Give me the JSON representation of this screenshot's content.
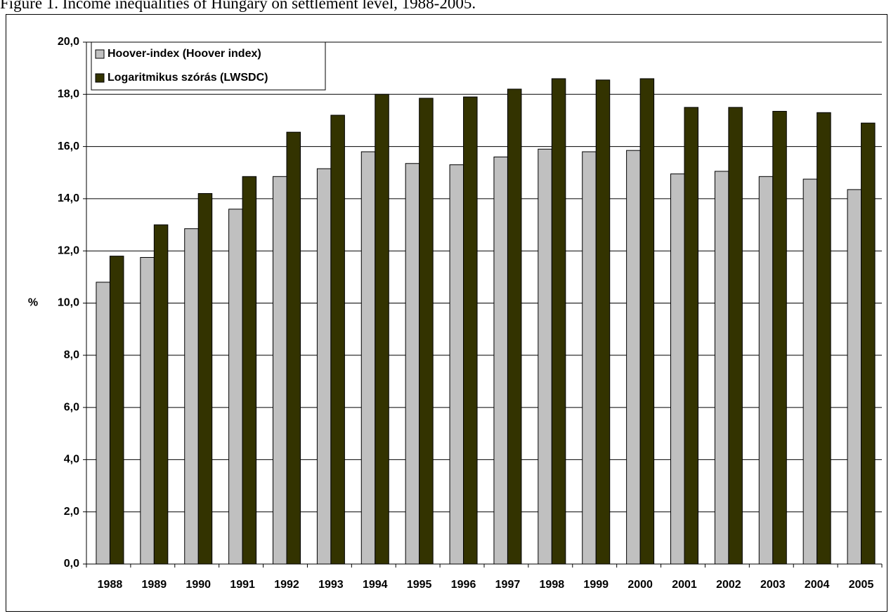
{
  "chart_data": {
    "type": "bar",
    "title": "Figure 1. Income inequalities of Hungary on settlement level, 1988-2005.",
    "ylabel": "%",
    "categories": [
      "1988",
      "1989",
      "1990",
      "1991",
      "1992",
      "1993",
      "1994",
      "1995",
      "1996",
      "1997",
      "1998",
      "1999",
      "2000",
      "2001",
      "2002",
      "2003",
      "2004",
      "2005"
    ],
    "series": [
      {
        "name": "Hoover-index (Hoover index)",
        "color": "#c0c0c0",
        "values": [
          10.8,
          11.75,
          12.85,
          13.6,
          14.85,
          15.15,
          15.8,
          15.35,
          15.3,
          15.6,
          15.9,
          15.8,
          15.85,
          14.95,
          15.05,
          14.85,
          14.75,
          14.35
        ]
      },
      {
        "name": "Logaritmikus szórás (LWSDC)",
        "color": "#333300",
        "values": [
          11.8,
          13.0,
          14.2,
          14.85,
          16.55,
          17.2,
          18.0,
          17.85,
          17.9,
          18.2,
          18.6,
          18.55,
          18.6,
          17.5,
          17.5,
          17.35,
          17.3,
          16.9
        ]
      }
    ],
    "ylim": [
      0,
      20
    ],
    "yticks": [
      {
        "value": 0,
        "label": "0,0"
      },
      {
        "value": 2,
        "label": "2,0"
      },
      {
        "value": 4,
        "label": "4,0"
      },
      {
        "value": 6,
        "label": "6,0"
      },
      {
        "value": 8,
        "label": "8,0"
      },
      {
        "value": 10,
        "label": "10,0"
      },
      {
        "value": 12,
        "label": "12,0"
      },
      {
        "value": 14,
        "label": "14,0"
      },
      {
        "value": 16,
        "label": "16,0"
      },
      {
        "value": 18,
        "label": "18,0"
      },
      {
        "value": 20,
        "label": "20,0"
      }
    ],
    "grid": true,
    "legend": "top-left"
  }
}
